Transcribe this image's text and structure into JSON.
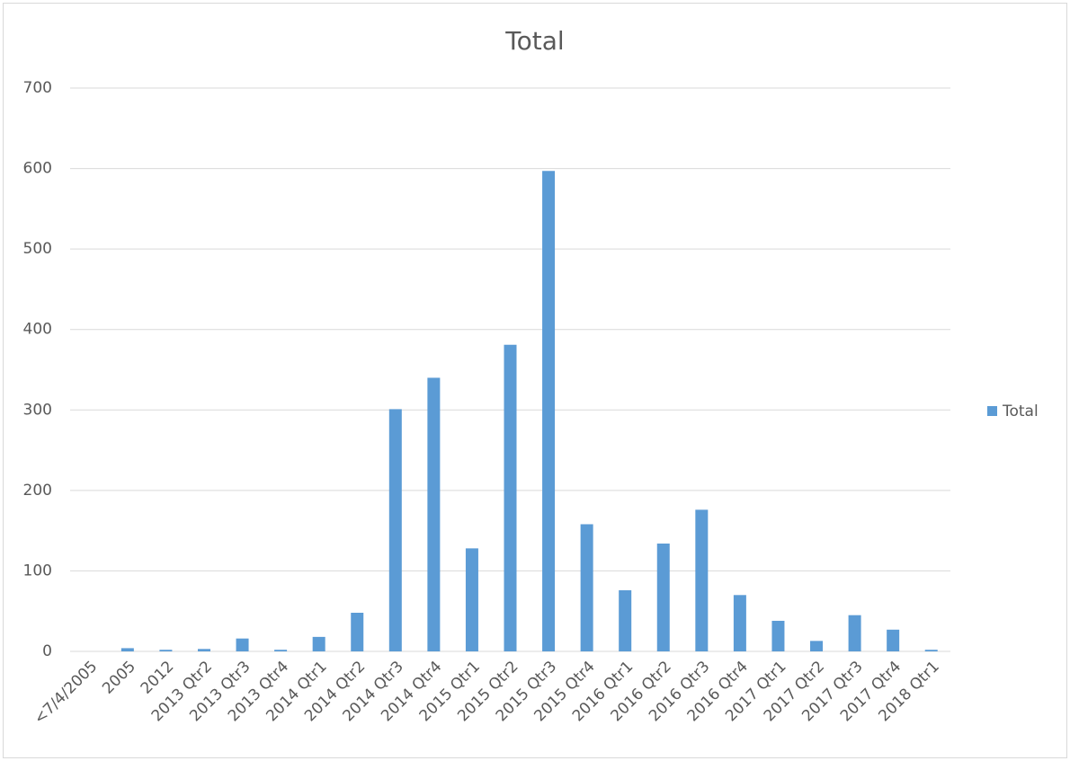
{
  "chart_data": {
    "type": "bar",
    "title": "Total",
    "categories": [
      "<7/4/2005",
      "2005",
      "2012",
      "2013 Qtr2",
      "2013 Qtr3",
      "2013 Qtr4",
      "2014 Qtr1",
      "2014 Qtr2",
      "2014 Qtr3",
      "2014 Qtr4",
      "2015 Qtr1",
      "2015 Qtr2",
      "2015 Qtr3",
      "2015 Qtr4",
      "2016 Qtr1",
      "2016 Qtr2",
      "2016 Qtr3",
      "2016 Qtr4",
      "2017 Qtr1",
      "2017 Qtr2",
      "2017 Qtr3",
      "2017 Qtr4",
      "2018 Qtr1"
    ],
    "series": [
      {
        "name": "Total",
        "color": "#5b9bd5",
        "values": [
          0,
          4,
          2,
          3,
          16,
          2,
          18,
          48,
          301,
          340,
          128,
          381,
          597,
          158,
          76,
          134,
          176,
          70,
          38,
          13,
          45,
          27,
          2
        ]
      }
    ],
    "ylim": [
      0,
      700
    ],
    "yticks": [
      0,
      100,
      200,
      300,
      400,
      500,
      600,
      700
    ],
    "grid": true,
    "legend": "right"
  }
}
